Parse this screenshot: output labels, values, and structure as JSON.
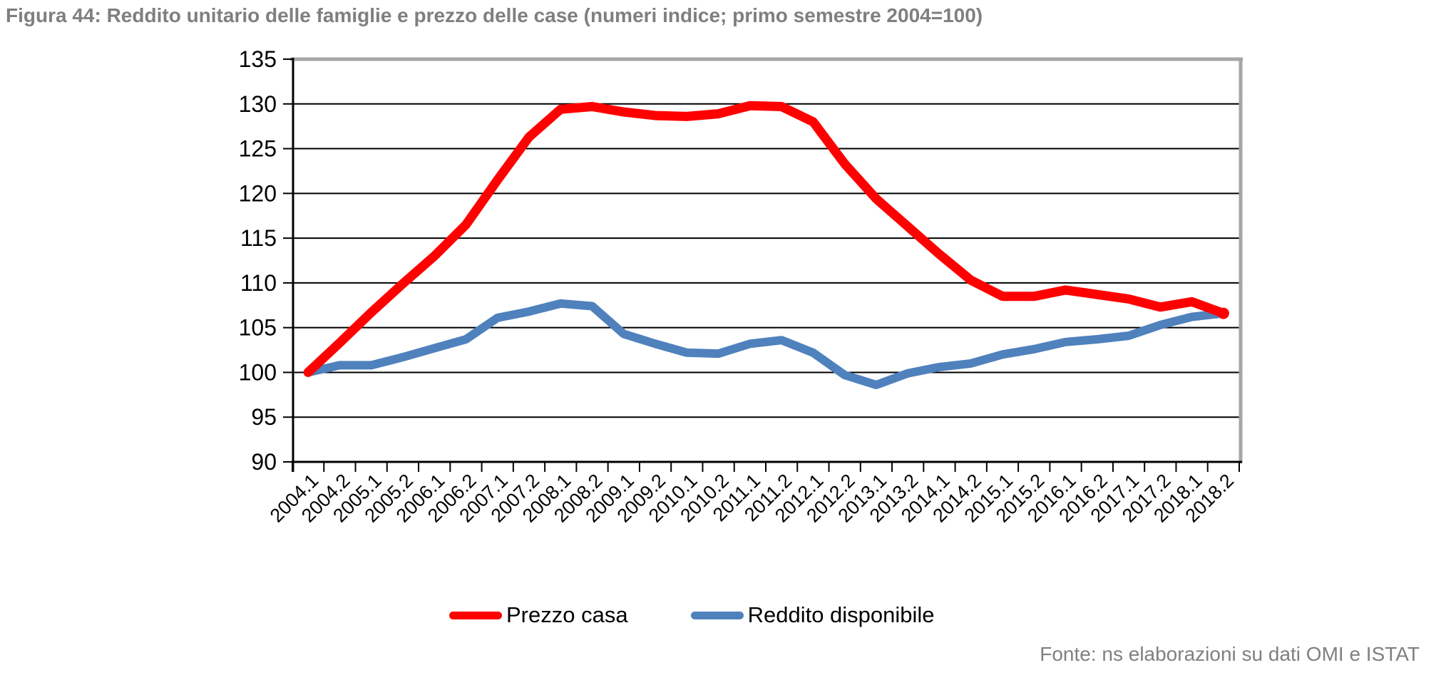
{
  "title": "Figura 44: Reddito unitario delle famiglie e prezzo delle case (numeri indice; primo semestre 2004=100)",
  "source_note": "Fonte: ns elaborazioni su dati OMI e ISTAT",
  "legend": {
    "items": [
      {
        "label": "Prezzo casa",
        "color": "#ff0000"
      },
      {
        "label": "Reddito disponibile",
        "color": "#4f81bd"
      }
    ]
  },
  "colors": {
    "prezzo_casa": "#ff0000",
    "reddito_disponibile": "#4f81bd",
    "gridline": "#000000",
    "plot_border": "#a6a6a6",
    "title_text": "#7f7f7f",
    "axis_text": "#000000"
  },
  "chart_data": {
    "type": "line",
    "title": "Figura 44: Reddito unitario delle famiglie e prezzo delle case (numeri indice; primo semestre 2004=100)",
    "xlabel": "",
    "ylabel": "",
    "ylim": [
      90,
      135
    ],
    "ytick_step": 5,
    "grid": "horizontal",
    "legend_position": "bottom-center",
    "categories": [
      "2004.1",
      "2004.2",
      "2005.1",
      "2005.2",
      "2006.1",
      "2006.2",
      "2007.1",
      "2007.2",
      "2008.1",
      "2008.2",
      "2009.1",
      "2009.2",
      "2010.1",
      "2010.2",
      "2011.1",
      "2011.2",
      "2012.1",
      "2012.2",
      "2013.1",
      "2013.2",
      "2014.1",
      "2014.2",
      "2015.1",
      "2015.2",
      "2016.1",
      "2016.2",
      "2017.1",
      "2017.2",
      "2018.1",
      "2018.2"
    ],
    "series": [
      {
        "name": "Prezzo casa",
        "color": "#ff0000",
        "stroke_width": 13,
        "end_marker": true,
        "values": [
          100,
          103.3,
          106.7,
          109.9,
          113.0,
          116.5,
          121.5,
          126.3,
          129.4,
          129.7,
          129.1,
          128.7,
          128.6,
          128.9,
          129.8,
          129.7,
          128.0,
          123.3,
          119.4,
          116.3,
          113.2,
          110.3,
          108.5,
          108.5,
          109.2,
          108.7,
          108.2,
          107.3,
          107.9,
          106.6
        ]
      },
      {
        "name": "Reddito disponibile",
        "color": "#4f81bd",
        "stroke_width": 12,
        "end_marker": false,
        "values": [
          100,
          100.8,
          100.8,
          101.7,
          102.7,
          103.7,
          106.1,
          106.8,
          107.7,
          107.4,
          104.3,
          103.2,
          102.2,
          102.1,
          103.2,
          103.6,
          102.2,
          99.7,
          98.6,
          99.9,
          100.6,
          101.0,
          102.0,
          102.6,
          103.4,
          103.7,
          104.1,
          105.3,
          106.2,
          106.6
        ]
      }
    ]
  }
}
